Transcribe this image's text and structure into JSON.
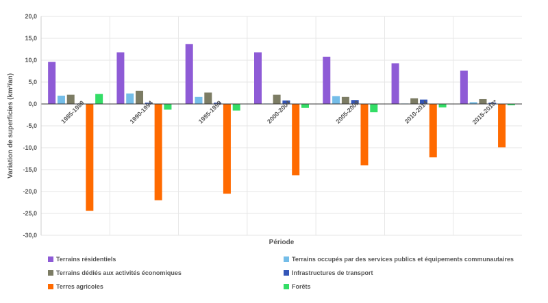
{
  "chart_data": {
    "type": "bar",
    "xlabel": "Période",
    "ylabel": "Variation de superficies (km²/an)",
    "ylim": [
      -30,
      20
    ],
    "ytick_step": 5,
    "ytick_labels": [
      "20,0",
      "15,0",
      "10,0",
      "5,0",
      "0,0",
      "-5,0",
      "-10,0",
      "-15,0",
      "-20,0",
      "-25,0",
      "-30,0"
    ],
    "categories": [
      "1985-1989",
      "1990-1994",
      "1995-1999",
      "2000-2004",
      "2005-2009",
      "2010-2014",
      "2015-2018*"
    ],
    "series": [
      {
        "name": "Terrains résidentiels",
        "color": "#8e5bd6",
        "values": [
          9.6,
          11.8,
          13.7,
          11.8,
          10.8,
          9.3,
          7.6
        ]
      },
      {
        "name": "Terrains occupés par des services publics et équipements communautaires",
        "color": "#74bde8",
        "values": [
          1.9,
          2.4,
          1.6,
          0.1,
          1.8,
          0.1,
          0.4
        ]
      },
      {
        "name": "Terrains dédiés aux activités économiques",
        "color": "#7c7c64",
        "values": [
          2.1,
          3.0,
          2.6,
          2.1,
          1.6,
          1.3,
          1.1
        ]
      },
      {
        "name": "Infrastructures de transport",
        "color": "#3456b8",
        "values": [
          0.1,
          0.3,
          0.3,
          0.8,
          0.9,
          1.0,
          0.3
        ]
      },
      {
        "name": "Terres agricoles",
        "color": "#ff6a00",
        "values": [
          -24.4,
          -22.0,
          -20.5,
          -16.3,
          -14.0,
          -12.2,
          -9.9
        ]
      },
      {
        "name": "Forêts",
        "color": "#33dd66",
        "values": [
          2.3,
          -1.3,
          -1.5,
          -0.9,
          -1.9,
          -0.8,
          -0.3
        ]
      }
    ],
    "legend_position": "bottom",
    "grid": {
      "horizontal": true,
      "vertical": true
    }
  }
}
